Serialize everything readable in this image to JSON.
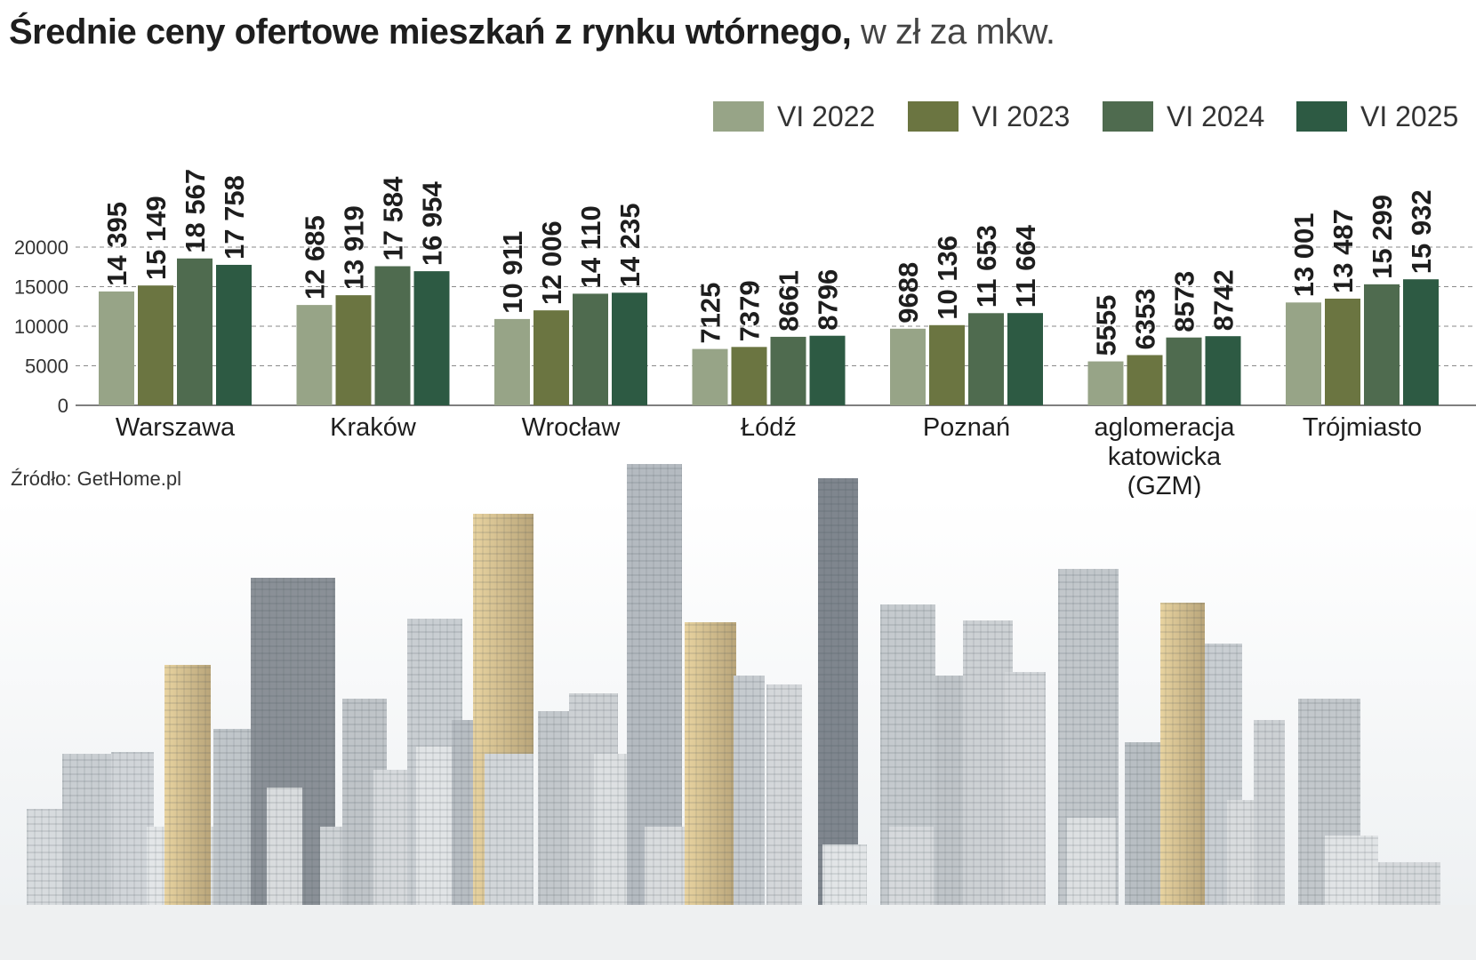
{
  "title": {
    "main": "Średnie ceny ofertowe mieszkań z rynku wtórnego,",
    "unit": " w zł za mkw."
  },
  "source": "Źródło: GetHome.pl",
  "colors": {
    "VI 2022": "#97a487",
    "VI 2023": "#6b7541",
    "VI 2024": "#4f6b4f",
    "VI 2025": "#2d5a43",
    "grid": "#8a8a8a",
    "text": "#1e1e1e"
  },
  "chart_data": {
    "type": "bar",
    "title": "Średnie ceny ofertowe mieszkań z rynku wtórnego, w zł za mkw.",
    "xlabel": "",
    "ylabel": "",
    "ylim": [
      0,
      20000
    ],
    "yticks": [
      0,
      5000,
      10000,
      15000,
      20000
    ],
    "grid": true,
    "legend_position": "top-right",
    "categories": [
      [
        "Warszawa"
      ],
      [
        "Kraków"
      ],
      [
        "Wrocław"
      ],
      [
        "Łódź"
      ],
      [
        "Poznań"
      ],
      [
        "aglomeracja",
        "katowicka",
        "(GZM)"
      ],
      [
        "Trójmiasto"
      ]
    ],
    "series": [
      {
        "name": "VI 2022",
        "values": [
          14395,
          12685,
          10911,
          7125,
          9688,
          5555,
          13001
        ],
        "labels": [
          "14 395",
          "12 685",
          "10 911",
          "7125",
          "9688",
          "5555",
          "13 001"
        ]
      },
      {
        "name": "VI 2023",
        "values": [
          15149,
          13919,
          12006,
          7379,
          10136,
          6353,
          13487
        ],
        "labels": [
          "15 149",
          "13 919",
          "12 006",
          "7379",
          "10 136",
          "6353",
          "13 487"
        ]
      },
      {
        "name": "VI 2024",
        "values": [
          18567,
          17584,
          14110,
          8661,
          11653,
          8573,
          15299
        ],
        "labels": [
          "18 567",
          "17 584",
          "14 110",
          "8661",
          "11 653",
          "8573",
          "15 299"
        ]
      },
      {
        "name": "VI 2025",
        "values": [
          17758,
          16954,
          14235,
          8796,
          11664,
          8742,
          15932
        ],
        "labels": [
          "17 758",
          "16 954",
          "14 235",
          "8796",
          "11 664",
          "8742",
          "15 932"
        ]
      }
    ]
  }
}
